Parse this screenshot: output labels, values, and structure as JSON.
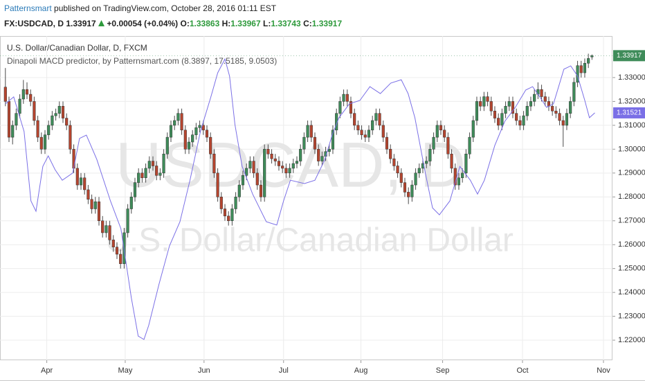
{
  "header": {
    "author": "Patternsmart",
    "published": "published on TradingView.com, October 28, 2016 01:11 EST",
    "symbol": "FX:USDCAD, D",
    "change": "+0.00054 (+0.04%)",
    "o_label": "O:",
    "h_label": "H:",
    "l_label": "L:",
    "c_label": "C:"
  },
  "chart_data": {
    "type": "candlestick",
    "title": "U.S. Dollar/Canadian Dollar, D, FXCM",
    "watermark": [
      "USDCAD, D",
      "U.S. Dollar/Canadian Dollar"
    ],
    "up_color": "#3f8c5a",
    "down_color": "#b5452f",
    "wick_color": "#4a4a4a",
    "grid": true,
    "xlim": [
      -1.5,
      168.7
    ],
    "xticks": [
      {
        "value": 11.5,
        "label": "Apr"
      },
      {
        "value": 33.3,
        "label": "May"
      },
      {
        "value": 55.2,
        "label": "Jun"
      },
      {
        "value": 77.3,
        "label": "Jul"
      },
      {
        "value": 98.8,
        "label": "Aug"
      },
      {
        "value": 121.5,
        "label": "Sep"
      },
      {
        "value": 143.7,
        "label": "Oct"
      },
      {
        "value": 166.2,
        "label": "Nov"
      }
    ],
    "ylim": [
      1.2116,
      1.3474
    ],
    "yticks": [
      {
        "value": 1.22,
        "label": "1.22000"
      },
      {
        "value": 1.23,
        "label": "1.23000"
      },
      {
        "value": 1.24,
        "label": "1.24000"
      },
      {
        "value": 1.25,
        "label": "1.25000"
      },
      {
        "value": 1.26,
        "label": "1.26000"
      },
      {
        "value": 1.27,
        "label": "1.27000"
      },
      {
        "value": 1.28,
        "label": "1.28000"
      },
      {
        "value": 1.29,
        "label": "1.29000"
      },
      {
        "value": 1.3,
        "label": "1.30000"
      },
      {
        "value": 1.31,
        "label": "1.31000"
      },
      {
        "value": 1.32,
        "label": "1.32000"
      },
      {
        "value": 1.33,
        "label": "1.33000"
      }
    ],
    "candles": [
      [
        1.326,
        1.334,
        1.318,
        1.32
      ],
      [
        1.32,
        1.322,
        1.303,
        1.305
      ],
      [
        1.305,
        1.312,
        1.302,
        1.31
      ],
      [
        1.31,
        1.317,
        1.308,
        1.315
      ],
      [
        1.315,
        1.323,
        1.313,
        1.321
      ],
      [
        1.321,
        1.329,
        1.319,
        1.325
      ],
      [
        1.325,
        1.328,
        1.321,
        1.323
      ],
      [
        1.323,
        1.325,
        1.318,
        1.32
      ],
      [
        1.32,
        1.322,
        1.31,
        1.312
      ],
      [
        1.312,
        1.314,
        1.303,
        1.305
      ],
      [
        1.305,
        1.307,
        1.298,
        1.3
      ],
      [
        1.3,
        1.308,
        1.298,
        1.306
      ],
      [
        1.306,
        1.312,
        1.304,
        1.31
      ],
      [
        1.31,
        1.316,
        1.308,
        1.314
      ],
      [
        1.314,
        1.317,
        1.312,
        1.315
      ],
      [
        1.315,
        1.32,
        1.313,
        1.318
      ],
      [
        1.318,
        1.32,
        1.311,
        1.313
      ],
      [
        1.313,
        1.315,
        1.308,
        1.31
      ],
      [
        1.31,
        1.312,
        1.298,
        1.3
      ],
      [
        1.3,
        1.302,
        1.29,
        1.292
      ],
      [
        1.292,
        1.294,
        1.283,
        1.285
      ],
      [
        1.285,
        1.29,
        1.283,
        1.288
      ],
      [
        1.288,
        1.29,
        1.281,
        1.283
      ],
      [
        1.283,
        1.285,
        1.277,
        1.279
      ],
      [
        1.279,
        1.281,
        1.273,
        1.275
      ],
      [
        1.275,
        1.28,
        1.273,
        1.278
      ],
      [
        1.278,
        1.28,
        1.268,
        1.27
      ],
      [
        1.27,
        1.272,
        1.263,
        1.265
      ],
      [
        1.265,
        1.27,
        1.263,
        1.268
      ],
      [
        1.268,
        1.27,
        1.26,
        1.262
      ],
      [
        1.262,
        1.264,
        1.257,
        1.259
      ],
      [
        1.259,
        1.261,
        1.254,
        1.256
      ],
      [
        1.256,
        1.258,
        1.25,
        1.252
      ],
      [
        1.252,
        1.267,
        1.25,
        1.265
      ],
      [
        1.265,
        1.277,
        1.263,
        1.275
      ],
      [
        1.275,
        1.282,
        1.273,
        1.28
      ],
      [
        1.28,
        1.288,
        1.278,
        1.286
      ],
      [
        1.286,
        1.292,
        1.284,
        1.29
      ],
      [
        1.29,
        1.292,
        1.286,
        1.288
      ],
      [
        1.288,
        1.294,
        1.286,
        1.292
      ],
      [
        1.292,
        1.297,
        1.29,
        1.295
      ],
      [
        1.295,
        1.297,
        1.291,
        1.293
      ],
      [
        1.293,
        1.295,
        1.287,
        1.289
      ],
      [
        1.289,
        1.292,
        1.287,
        1.29
      ],
      [
        1.29,
        1.3,
        1.288,
        1.298
      ],
      [
        1.298,
        1.307,
        1.296,
        1.305
      ],
      [
        1.305,
        1.312,
        1.303,
        1.31
      ],
      [
        1.31,
        1.314,
        1.308,
        1.312
      ],
      [
        1.312,
        1.317,
        1.31,
        1.315
      ],
      [
        1.315,
        1.317,
        1.306,
        1.308
      ],
      [
        1.308,
        1.31,
        1.298,
        1.3
      ],
      [
        1.3,
        1.305,
        1.298,
        1.303
      ],
      [
        1.303,
        1.308,
        1.301,
        1.306
      ],
      [
        1.306,
        1.311,
        1.304,
        1.309
      ],
      [
        1.309,
        1.312,
        1.307,
        1.31
      ],
      [
        1.31,
        1.312,
        1.306,
        1.308
      ],
      [
        1.308,
        1.31,
        1.303,
        1.305
      ],
      [
        1.305,
        1.307,
        1.296,
        1.298
      ],
      [
        1.298,
        1.3,
        1.288,
        1.29
      ],
      [
        1.29,
        1.292,
        1.278,
        1.28
      ],
      [
        1.28,
        1.282,
        1.273,
        1.275
      ],
      [
        1.275,
        1.277,
        1.27,
        1.272
      ],
      [
        1.272,
        1.274,
        1.268,
        1.27
      ],
      [
        1.27,
        1.277,
        1.268,
        1.275
      ],
      [
        1.275,
        1.282,
        1.273,
        1.28
      ],
      [
        1.28,
        1.287,
        1.278,
        1.285
      ],
      [
        1.285,
        1.291,
        1.283,
        1.289
      ],
      [
        1.289,
        1.294,
        1.287,
        1.292
      ],
      [
        1.292,
        1.297,
        1.29,
        1.295
      ],
      [
        1.295,
        1.297,
        1.288,
        1.29
      ],
      [
        1.29,
        1.292,
        1.283,
        1.285
      ],
      [
        1.285,
        1.287,
        1.278,
        1.28
      ],
      [
        1.28,
        1.302,
        1.278,
        1.3
      ],
      [
        1.3,
        1.302,
        1.296,
        1.298
      ],
      [
        1.298,
        1.3,
        1.294,
        1.296
      ],
      [
        1.296,
        1.298,
        1.293,
        1.295
      ],
      [
        1.295,
        1.297,
        1.291,
        1.293
      ],
      [
        1.293,
        1.295,
        1.29,
        1.292
      ],
      [
        1.292,
        1.294,
        1.288,
        1.29
      ],
      [
        1.29,
        1.294,
        1.288,
        1.292
      ],
      [
        1.292,
        1.296,
        1.29,
        1.294
      ],
      [
        1.294,
        1.297,
        1.292,
        1.295
      ],
      [
        1.295,
        1.302,
        1.293,
        1.3
      ],
      [
        1.3,
        1.307,
        1.298,
        1.305
      ],
      [
        1.305,
        1.312,
        1.303,
        1.31
      ],
      [
        1.31,
        1.312,
        1.303,
        1.305
      ],
      [
        1.305,
        1.307,
        1.298,
        1.3
      ],
      [
        1.3,
        1.302,
        1.293,
        1.295
      ],
      [
        1.295,
        1.299,
        1.293,
        1.297
      ],
      [
        1.297,
        1.301,
        1.295,
        1.299
      ],
      [
        1.299,
        1.302,
        1.297,
        1.3
      ],
      [
        1.3,
        1.31,
        1.298,
        1.308
      ],
      [
        1.308,
        1.317,
        1.306,
        1.315
      ],
      [
        1.315,
        1.322,
        1.313,
        1.32
      ],
      [
        1.32,
        1.325,
        1.318,
        1.323
      ],
      [
        1.323,
        1.325,
        1.318,
        1.32
      ],
      [
        1.32,
        1.322,
        1.313,
        1.315
      ],
      [
        1.315,
        1.317,
        1.308,
        1.31
      ],
      [
        1.31,
        1.312,
        1.306,
        1.308
      ],
      [
        1.308,
        1.31,
        1.304,
        1.306
      ],
      [
        1.306,
        1.308,
        1.303,
        1.305
      ],
      [
        1.305,
        1.31,
        1.303,
        1.308
      ],
      [
        1.308,
        1.314,
        1.306,
        1.312
      ],
      [
        1.312,
        1.317,
        1.31,
        1.315
      ],
      [
        1.315,
        1.317,
        1.308,
        1.31
      ],
      [
        1.31,
        1.312,
        1.303,
        1.305
      ],
      [
        1.305,
        1.307,
        1.298,
        1.3
      ],
      [
        1.3,
        1.302,
        1.294,
        1.296
      ],
      [
        1.296,
        1.298,
        1.291,
        1.293
      ],
      [
        1.293,
        1.295,
        1.288,
        1.29
      ],
      [
        1.29,
        1.292,
        1.284,
        1.286
      ],
      [
        1.286,
        1.288,
        1.28,
        1.282
      ],
      [
        1.282,
        1.284,
        1.277,
        1.28
      ],
      [
        1.28,
        1.287,
        1.278,
        1.285
      ],
      [
        1.285,
        1.292,
        1.283,
        1.29
      ],
      [
        1.29,
        1.294,
        1.288,
        1.292
      ],
      [
        1.292,
        1.296,
        1.29,
        1.294
      ],
      [
        1.294,
        1.297,
        1.292,
        1.295
      ],
      [
        1.295,
        1.302,
        1.293,
        1.3
      ],
      [
        1.3,
        1.307,
        1.298,
        1.305
      ],
      [
        1.305,
        1.312,
        1.303,
        1.31
      ],
      [
        1.31,
        1.312,
        1.306,
        1.308
      ],
      [
        1.308,
        1.31,
        1.303,
        1.305
      ],
      [
        1.305,
        1.307,
        1.296,
        1.298
      ],
      [
        1.298,
        1.3,
        1.29,
        1.292
      ],
      [
        1.292,
        1.294,
        1.283,
        1.285
      ],
      [
        1.285,
        1.29,
        1.283,
        1.288
      ],
      [
        1.288,
        1.292,
        1.286,
        1.29
      ],
      [
        1.29,
        1.3,
        1.288,
        1.298
      ],
      [
        1.298,
        1.307,
        1.296,
        1.305
      ],
      [
        1.305,
        1.314,
        1.303,
        1.312
      ],
      [
        1.312,
        1.322,
        1.31,
        1.32
      ],
      [
        1.32,
        1.322,
        1.316,
        1.318
      ],
      [
        1.318,
        1.324,
        1.316,
        1.322
      ],
      [
        1.322,
        1.324,
        1.318,
        1.32
      ],
      [
        1.32,
        1.322,
        1.314,
        1.316
      ],
      [
        1.316,
        1.318,
        1.311,
        1.313
      ],
      [
        1.313,
        1.315,
        1.308,
        1.31
      ],
      [
        1.31,
        1.317,
        1.308,
        1.315
      ],
      [
        1.315,
        1.32,
        1.313,
        1.318
      ],
      [
        1.318,
        1.322,
        1.316,
        1.32
      ],
      [
        1.32,
        1.322,
        1.313,
        1.315
      ],
      [
        1.315,
        1.317,
        1.31,
        1.312
      ],
      [
        1.312,
        1.314,
        1.308,
        1.31
      ],
      [
        1.31,
        1.316,
        1.308,
        1.314
      ],
      [
        1.314,
        1.32,
        1.312,
        1.318
      ],
      [
        1.318,
        1.322,
        1.316,
        1.32
      ],
      [
        1.32,
        1.325,
        1.318,
        1.323
      ],
      [
        1.323,
        1.328,
        1.321,
        1.325
      ],
      [
        1.325,
        1.327,
        1.32,
        1.322
      ],
      [
        1.322,
        1.324,
        1.318,
        1.32
      ],
      [
        1.32,
        1.322,
        1.316,
        1.318
      ],
      [
        1.318,
        1.32,
        1.314,
        1.316
      ],
      [
        1.316,
        1.318,
        1.313,
        1.315
      ],
      [
        1.315,
        1.317,
        1.31,
        1.312
      ],
      [
        1.312,
        1.314,
        1.301,
        1.31
      ],
      [
        1.31,
        1.317,
        1.308,
        1.315
      ],
      [
        1.315,
        1.322,
        1.313,
        1.32
      ],
      [
        1.32,
        1.33,
        1.318,
        1.328
      ],
      [
        1.328,
        1.337,
        1.326,
        1.335
      ],
      [
        1.335,
        1.337,
        1.33,
        1.332
      ],
      [
        1.332,
        1.338,
        1.33,
        1.336
      ],
      [
        1.336,
        1.34,
        1.334,
        1.338
      ],
      [
        1.33863,
        1.33967,
        1.33743,
        1.33917
      ]
    ],
    "series": [
      {
        "name": "Dinapoli MACD predictor, by Patternsmart.com (8.3897, 17.5185, 9.0503)",
        "color": "#7a6fe6",
        "x": [
          0,
          2.3,
          5.2,
          7.1,
          8.5,
          10.4,
          11.9,
          13.8,
          15.8,
          18.7,
          20.6,
          22.5,
          25.4,
          29.2,
          32.1,
          35,
          36.9,
          38.5,
          39.8,
          42.7,
          45.6,
          48.5,
          51.3,
          54.2,
          57.1,
          59,
          61,
          62.3,
          63.8,
          65.8,
          68.7,
          72.5,
          75.4,
          77.3,
          79.2,
          83.1,
          86,
          88.8,
          90.8,
          92.7,
          95.6,
          98.5,
          101.3,
          104.2,
          107.1,
          110,
          111.9,
          113.8,
          116.7,
          118.7,
          120.6,
          123.5,
          126.3,
          129.2,
          131.2,
          133.1,
          136,
          138.8,
          141.7,
          144.6,
          146.5,
          148.5,
          150.4,
          152.3,
          155.2,
          157.1,
          159,
          161,
          162.3,
          163.8
        ],
        "values": [
          1.319,
          1.3219,
          1.3074,
          1.2783,
          1.274,
          1.2928,
          1.2972,
          1.2914,
          1.287,
          1.29,
          1.3045,
          1.3059,
          1.2957,
          1.2783,
          1.2667,
          1.2377,
          1.2217,
          1.2203,
          1.2261,
          1.2435,
          1.2595,
          1.2696,
          1.287,
          1.3074,
          1.3219,
          1.332,
          1.3378,
          1.3306,
          1.3103,
          1.2928,
          1.2812,
          1.2696,
          1.2682,
          1.2783,
          1.287,
          1.2856,
          1.287,
          1.2957,
          1.3059,
          1.3132,
          1.319,
          1.3204,
          1.3262,
          1.3233,
          1.3277,
          1.3291,
          1.3233,
          1.3132,
          1.29,
          1.2754,
          1.2725,
          1.2783,
          1.2928,
          1.287,
          1.2812,
          1.287,
          1.3016,
          1.3117,
          1.3175,
          1.3248,
          1.3262,
          1.3219,
          1.3175,
          1.319,
          1.3335,
          1.3349,
          1.3306,
          1.3204,
          1.3132,
          1.31521
        ]
      }
    ]
  }
}
